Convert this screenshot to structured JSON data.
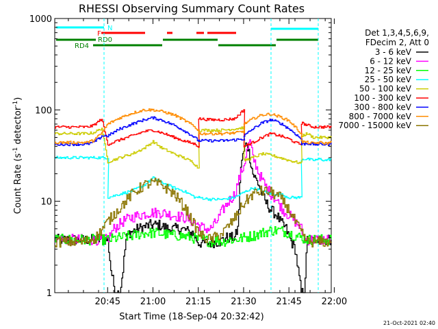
{
  "chart_data": {
    "type": "line",
    "title": "RHESSI Observing Summary Count Rates",
    "xlabel": "Start Time (18-Sep-04 20:32:42)",
    "ylabel": "Count Rate (s",
    "ylabel_sup1": "-1",
    "ylabel_mid": " detector",
    "ylabel_sup2": "-1",
    "ylabel_end": ")",
    "yscale": "log",
    "ylim": [
      1,
      1000
    ],
    "xlim_minutes": [
      20.5,
      112.0
    ],
    "x_tick_labels": [
      "20:45",
      "21:00",
      "21:15",
      "21:30",
      "21:45",
      "22:00"
    ],
    "x_tick_minutes": [
      38,
      53,
      68,
      83,
      98,
      113
    ],
    "y_tick_labels": [
      "1",
      "10",
      "100",
      "1000"
    ],
    "y_tick_values": [
      1,
      10,
      100,
      1000
    ],
    "legend": {
      "header_line1": "Det 1,3,4,5,6,9,",
      "header_line2": "FDecim 2, Att 0"
    },
    "flags": {
      "N_label": "N",
      "F_label": "F",
      "RD0_label": "RD0",
      "RD4_label": "RD4"
    },
    "footer_date": "21-Oct-2021 02:40",
    "series": [
      {
        "name": "3 - 6 keV",
        "color": "#000000",
        "x": [
          20.5,
          30,
          35,
          38,
          39,
          40,
          41,
          42,
          43,
          44,
          45,
          48,
          52,
          55,
          58,
          62,
          64,
          65,
          66,
          67,
          68,
          70,
          72,
          74,
          75,
          76,
          77,
          78,
          79,
          80,
          81,
          82,
          83,
          84,
          86,
          88,
          90,
          92,
          94,
          95,
          97,
          98,
          100,
          102,
          103,
          104,
          105,
          106,
          107,
          108,
          110,
          112
        ],
        "y": [
          3.8,
          3.8,
          3.8,
          3.8,
          1.8,
          1.2,
          1.0,
          1.0,
          1.8,
          3.8,
          4.5,
          5.0,
          5.5,
          5.5,
          5.0,
          5.0,
          4.8,
          4.5,
          4.5,
          4.0,
          3.5,
          3.5,
          3.5,
          3.6,
          3.6,
          3.8,
          4.0,
          4.0,
          4.0,
          4.0,
          5.0,
          25,
          35,
          45,
          20,
          15,
          10,
          8,
          7,
          6,
          5,
          4,
          3,
          1.0,
          1.0,
          3.8,
          3.8,
          3.8,
          3.8,
          3.8,
          3.8,
          3.8
        ]
      },
      {
        "name": "6 - 12 keV",
        "color": "#ff00ff",
        "x": [
          20.5,
          38,
          40,
          43,
          45,
          48,
          52,
          56,
          60,
          64,
          66,
          68,
          70,
          72,
          74,
          76,
          78,
          80,
          81,
          82,
          83,
          84,
          85,
          86,
          87,
          88,
          90,
          92,
          94,
          95,
          96,
          98,
          100,
          102,
          103,
          104,
          106,
          108,
          110,
          112
        ],
        "y": [
          3.8,
          3.8,
          5.0,
          6.0,
          6.5,
          7.0,
          7.5,
          7.5,
          7.0,
          6.5,
          6.0,
          5.5,
          5.0,
          5.0,
          6.0,
          8.0,
          10,
          12,
          16,
          20,
          25,
          35,
          45,
          30,
          25,
          20,
          15,
          12,
          10,
          9,
          8,
          7,
          6,
          5,
          3.8,
          3.8,
          3.8,
          3.8,
          3.8,
          3.8
        ]
      },
      {
        "name": "12 - 25 keV",
        "color": "#00ff00",
        "x": [
          20.5,
          38,
          42,
          46,
          50,
          54,
          58,
          62,
          66,
          68,
          70,
          72,
          74,
          76,
          78,
          80,
          83,
          86,
          89,
          92,
          95,
          98,
          100,
          102,
          104,
          106,
          108,
          110,
          112
        ],
        "y": [
          3.8,
          3.8,
          4.0,
          4.2,
          4.5,
          4.5,
          4.3,
          4.2,
          4.0,
          3.8,
          3.8,
          3.6,
          3.8,
          3.6,
          3.8,
          3.8,
          4.0,
          4.2,
          4.5,
          4.8,
          4.8,
          4.5,
          4.2,
          4.0,
          3.8,
          3.8,
          3.8,
          3.8,
          3.8
        ]
      },
      {
        "name": "25 - 50 keV",
        "color": "#00ffff",
        "x": [
          20.5,
          38,
          38.1,
          42,
          46,
          50,
          53,
          56,
          60,
          63,
          65,
          67,
          68,
          68.1,
          72,
          76,
          80,
          82,
          84,
          86,
          89,
          92,
          95,
          98,
          100,
          102,
          102.1,
          104,
          106,
          108,
          110,
          112
        ],
        "y": [
          30,
          30,
          11,
          12,
          13,
          15,
          18,
          16,
          14,
          13,
          12,
          11,
          11,
          11,
          10.5,
          10.5,
          11,
          12,
          13,
          14,
          13,
          12,
          12,
          11,
          11,
          11,
          29,
          29,
          28,
          29,
          28,
          29
        ]
      },
      {
        "name": "50 - 100 keV",
        "color": "#cccc00",
        "x": [
          20.5,
          31,
          33,
          35,
          36,
          38,
          42,
          46,
          50,
          53,
          56,
          60,
          63,
          66,
          67,
          68,
          68.1,
          72,
          76,
          80,
          83,
          83.1,
          86,
          89,
          92,
          95,
          98,
          100,
          102,
          102.1,
          104,
          106,
          108,
          110,
          112
        ],
        "y": [
          55,
          55,
          56,
          60,
          63,
          27,
          30,
          33,
          38,
          45,
          38,
          33,
          30,
          27,
          25,
          23,
          60,
          60,
          60,
          62,
          64,
          28,
          30,
          33,
          32,
          30,
          28,
          27,
          26,
          52,
          55,
          50,
          50,
          50,
          50
        ]
      },
      {
        "name": "100 - 300 keV",
        "color": "#ff0000",
        "x": [
          20.5,
          31,
          33,
          35,
          36,
          38,
          42,
          46,
          50,
          53,
          56,
          60,
          63,
          66,
          67,
          68,
          68.1,
          72,
          76,
          80,
          83,
          83.1,
          86,
          89,
          92,
          95,
          98,
          100,
          102,
          102.1,
          104,
          106,
          108,
          110,
          112
        ],
        "y": [
          65,
          65,
          67,
          75,
          80,
          42,
          47,
          52,
          58,
          60,
          56,
          50,
          46,
          43,
          42,
          40,
          80,
          78,
          78,
          80,
          100,
          40,
          44,
          50,
          55,
          52,
          48,
          44,
          42,
          72,
          68,
          65,
          65,
          65,
          65
        ]
      },
      {
        "name": "300 - 800 keV",
        "color": "#0000ff",
        "x": [
          20.5,
          31,
          33,
          35,
          36,
          38,
          42,
          46,
          50,
          53,
          56,
          60,
          63,
          66,
          68,
          68.1,
          72,
          76,
          80,
          83,
          83.1,
          86,
          89,
          92,
          95,
          98,
          100,
          102,
          102.1,
          104,
          106,
          108,
          110,
          112
        ],
        "y": [
          42,
          42,
          44,
          48,
          52,
          52,
          62,
          70,
          78,
          82,
          77,
          68,
          60,
          52,
          46,
          46,
          46,
          46,
          47,
          48,
          52,
          62,
          72,
          78,
          72,
          62,
          55,
          48,
          42,
          43,
          42,
          42,
          42,
          42
        ]
      },
      {
        "name": "800 - 7000 keV",
        "color": "#ff8c00",
        "x": [
          20.5,
          31,
          33,
          35,
          36,
          38,
          42,
          46,
          50,
          53,
          56,
          60,
          63,
          66,
          68,
          68.1,
          72,
          76,
          80,
          83,
          83.1,
          86,
          89,
          92,
          95,
          98,
          100,
          102,
          102.1,
          104,
          106,
          108,
          110,
          112
        ],
        "y": [
          44,
          44,
          46,
          52,
          56,
          70,
          82,
          92,
          100,
          100,
          96,
          88,
          78,
          68,
          60,
          55,
          55,
          55,
          56,
          58,
          70,
          80,
          88,
          90,
          84,
          76,
          65,
          55,
          45,
          44,
          43,
          44,
          43,
          44
        ]
      },
      {
        "name": "7000 - 15000 keV",
        "color": "#8b7500",
        "x": [
          20.5,
          30,
          34,
          38,
          42,
          46,
          50,
          53,
          56,
          60,
          64,
          66,
          68,
          70,
          72,
          76,
          80,
          83,
          86,
          89,
          92,
          95,
          98,
          100,
          102,
          104,
          106,
          108,
          110,
          112
        ],
        "y": [
          3.6,
          3.6,
          4.0,
          6.0,
          8.5,
          12,
          15,
          16,
          15,
          12,
          8,
          6,
          4.5,
          4.0,
          3.8,
          4.5,
          6.5,
          9.5,
          12,
          13,
          12.5,
          11,
          8,
          6,
          4.5,
          3.6,
          3.6,
          3.6,
          3.6,
          3.6
        ]
      }
    ]
  }
}
